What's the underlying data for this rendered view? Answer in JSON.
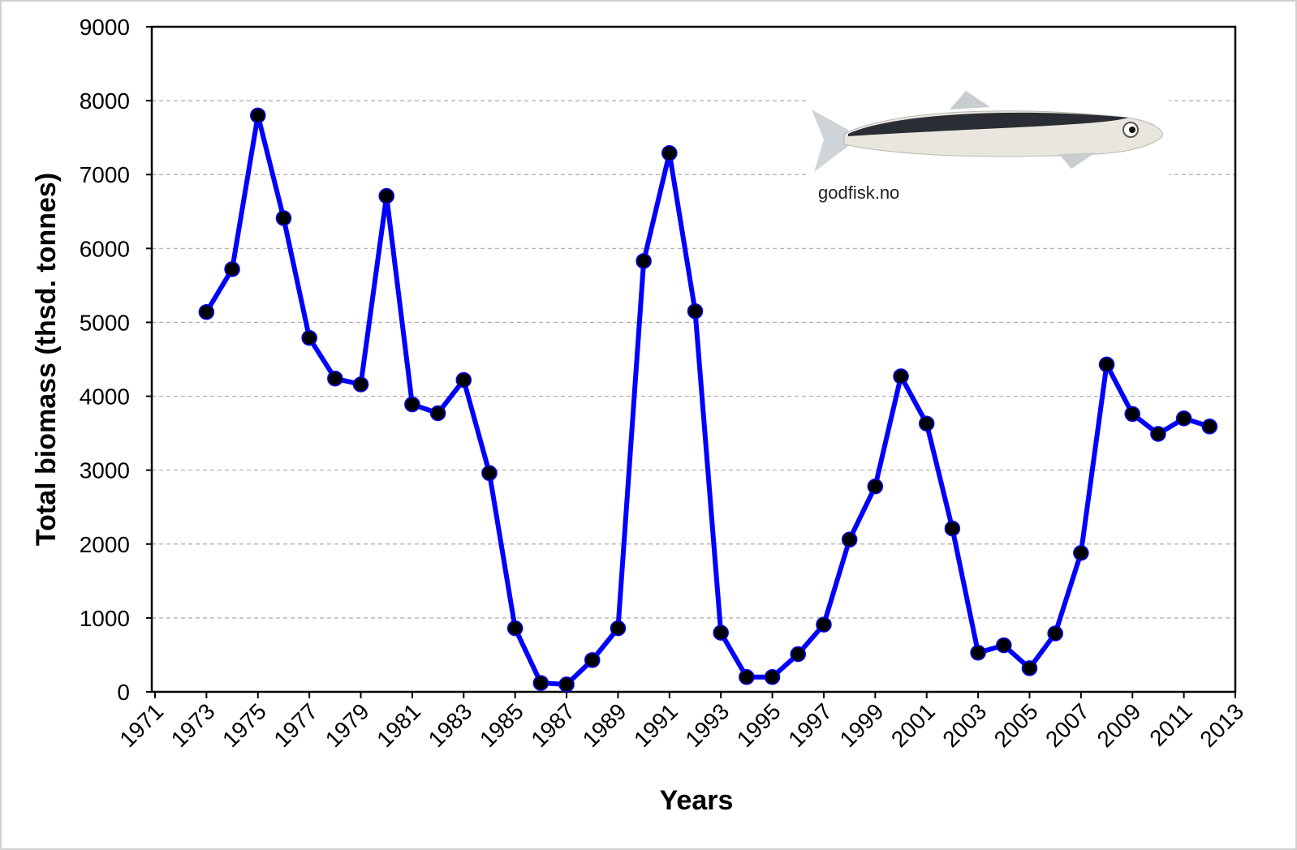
{
  "chart_data": {
    "type": "line",
    "x_label": "Years",
    "y_label": "Total biomass (thsd. tonnes)",
    "annotation": "godfisk.no",
    "x": [
      1973,
      1974,
      1975,
      1976,
      1977,
      1978,
      1979,
      1980,
      1981,
      1982,
      1983,
      1984,
      1985,
      1986,
      1987,
      1988,
      1989,
      1990,
      1991,
      1992,
      1993,
      1994,
      1995,
      1996,
      1997,
      1998,
      1999,
      2000,
      2001,
      2002,
      2003,
      2004,
      2005,
      2006,
      2007,
      2008,
      2009,
      2010,
      2011,
      2012
    ],
    "series": [
      {
        "color": "#0000ff",
        "marker_color": "#000000",
        "values": [
          5140,
          5720,
          7800,
          6410,
          4790,
          4240,
          4160,
          6710,
          3890,
          3770,
          4220,
          2960,
          860,
          120,
          100,
          430,
          860,
          5830,
          7290,
          5150,
          800,
          200,
          200,
          510,
          910,
          2060,
          2780,
          4270,
          3630,
          2210,
          530,
          630,
          320,
          790,
          1880,
          4430,
          3760,
          3490,
          3700,
          3590
        ]
      }
    ],
    "xlim": [
      1971,
      2013
    ],
    "xticks": [
      1971,
      1973,
      1975,
      1977,
      1979,
      1981,
      1983,
      1985,
      1987,
      1989,
      1991,
      1993,
      1995,
      1997,
      1999,
      2001,
      2003,
      2005,
      2007,
      2009,
      2011,
      2013
    ],
    "ylim": [
      0,
      9000
    ],
    "yticks": [
      0,
      1000,
      2000,
      3000,
      4000,
      5000,
      6000,
      7000,
      8000,
      9000
    ],
    "grid": true
  }
}
